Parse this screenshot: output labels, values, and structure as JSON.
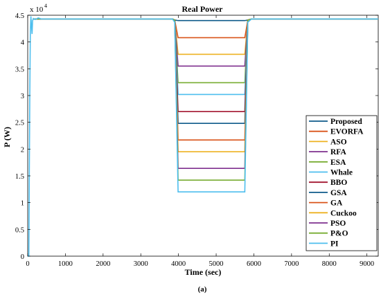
{
  "chart_data": {
    "type": "line",
    "title": "Real Power",
    "xlabel": "Time (sec)",
    "ylabel": "P (W)",
    "y_multiplier_label": "x 10",
    "y_exponent": "4",
    "caption": "(a)",
    "xlim": [
      0,
      9300
    ],
    "ylim": [
      0,
      45000
    ],
    "xticks": [
      0,
      1000,
      2000,
      3000,
      4000,
      5000,
      6000,
      7000,
      8000,
      9000
    ],
    "yticks": [
      0,
      5000,
      10000,
      15000,
      20000,
      25000,
      30000,
      35000,
      40000,
      45000
    ],
    "ytick_labels": [
      "0",
      "0.5",
      "1",
      "1.5",
      "2",
      "2.5",
      "3",
      "3.5",
      "4",
      "4.5"
    ],
    "grid": false,
    "legend_position": "right",
    "nominal_power": 44300,
    "dip_start": 3900,
    "dip_end": 5800,
    "series": [
      {
        "name": "Proposed",
        "color": "#0e5a8a",
        "dip_value": 44000
      },
      {
        "name": "EVORFA",
        "color": "#d95319",
        "dip_value": 40800
      },
      {
        "name": "ASO",
        "color": "#edb120",
        "dip_value": 37700
      },
      {
        "name": "RFA",
        "color": "#7e2f8e",
        "dip_value": 35500
      },
      {
        "name": "ESA",
        "color": "#77ac30",
        "dip_value": 32400
      },
      {
        "name": "Whale",
        "color": "#4dbeee",
        "dip_value": 30200
      },
      {
        "name": "BBO",
        "color": "#a2142f",
        "dip_value": 27000
      },
      {
        "name": "GSA",
        "color": "#0e5a8a",
        "dip_value": 24800
      },
      {
        "name": "GA",
        "color": "#d95319",
        "dip_value": 21700
      },
      {
        "name": "Cuckoo",
        "color": "#edb120",
        "dip_value": 19500
      },
      {
        "name": "PSO",
        "color": "#7e2f8e",
        "dip_value": 16400
      },
      {
        "name": "P&O",
        "color": "#77ac30",
        "dip_value": 14200
      },
      {
        "name": "PI",
        "color": "#4dbeee",
        "dip_value": 12000
      }
    ]
  }
}
